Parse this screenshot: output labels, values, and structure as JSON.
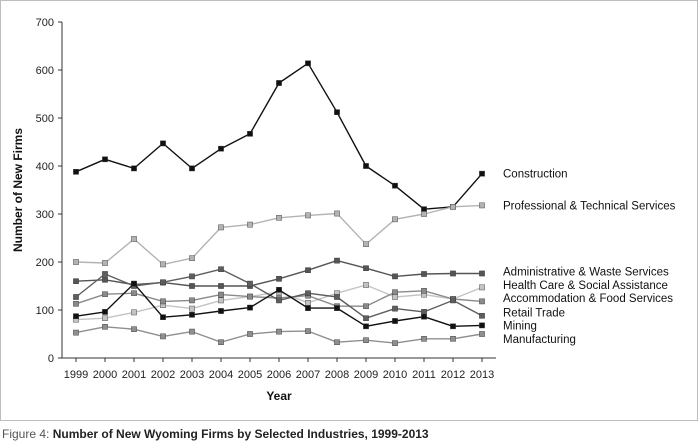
{
  "caption": {
    "prefix": "Figure 4:",
    "title": "Number of New Wyoming Firms by Selected Industries, 1999-2013"
  },
  "chart_data": {
    "type": "line",
    "xlabel": "Year",
    "ylabel": "Number of New Firms",
    "ylim": [
      0,
      700
    ],
    "yticks": [
      0,
      100,
      200,
      300,
      400,
      500,
      600,
      700
    ],
    "x": [
      1999,
      2000,
      2001,
      2002,
      2003,
      2004,
      2005,
      2006,
      2007,
      2008,
      2009,
      2010,
      2011,
      2012,
      2013
    ],
    "legend_placement": "right, inline labels",
    "grid": false,
    "series": [
      {
        "name": "Construction",
        "color": "#111111",
        "values": [
          388,
          414,
          395,
          447,
          395,
          436,
          467,
          573,
          614,
          512,
          400,
          359,
          310,
          315,
          384
        ]
      },
      {
        "name": "Professional & Technical Services",
        "color": "#b3b3b3",
        "values": [
          200,
          198,
          248,
          195,
          208,
          272,
          278,
          292,
          297,
          301,
          237,
          289,
          300,
          315,
          318
        ]
      },
      {
        "name": "Administrative & Waste Services",
        "color": "#555555",
        "values": [
          160,
          163,
          153,
          157,
          150,
          150,
          150,
          165,
          183,
          203,
          187,
          170,
          175,
          176,
          176
        ]
      },
      {
        "name": "Health Care & Social Assistance",
        "color": "#c4c4c4",
        "values": [
          80,
          83,
          95,
          110,
          103,
          120,
          128,
          138,
          115,
          135,
          152,
          127,
          132,
          123,
          147
        ]
      },
      {
        "name": "Accommodation & Food Services",
        "color": "#8a8a8a",
        "values": [
          113,
          133,
          135,
          118,
          120,
          132,
          128,
          125,
          130,
          108,
          108,
          137,
          140,
          123,
          118
        ]
      },
      {
        "name": "Retail Trade",
        "color": "#5e5e5e",
        "values": [
          127,
          175,
          150,
          158,
          170,
          185,
          155,
          120,
          135,
          127,
          83,
          103,
          96,
          120,
          88
        ]
      },
      {
        "name": "Mining",
        "color": "#111111",
        "values": [
          87,
          96,
          155,
          85,
          90,
          98,
          105,
          142,
          104,
          104,
          66,
          77,
          86,
          66,
          68
        ]
      },
      {
        "name": "Manufacturing",
        "color": "#8f8f8f",
        "values": [
          53,
          65,
          60,
          45,
          55,
          33,
          50,
          55,
          56,
          33,
          37,
          31,
          40,
          40,
          50
        ]
      }
    ],
    "label_y": {
      "Construction": 384,
      "Professional & Technical Services": 318,
      "Administrative & Waste Services": 180,
      "Health Care & Social Assistance": 152,
      "Accommodation & Food Services": 125,
      "Retail Trade": 95,
      "Mining": 68,
      "Manufacturing": 40
    }
  }
}
